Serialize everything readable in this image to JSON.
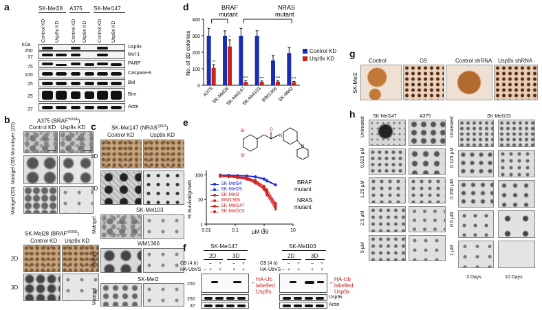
{
  "panel_a": {
    "letter": "a",
    "cell_lines": [
      "SK-Mel28",
      "A375",
      "SK-Mel147"
    ],
    "lanes": [
      "Control KD",
      "Usp9x KD",
      "Control KD",
      "Usp9x KD",
      "Control KD",
      "Usp9x KD"
    ],
    "kda_label": "kDa",
    "markers": [
      "250",
      "37",
      "75",
      "100",
      "25",
      "25",
      "37"
    ],
    "proteins": [
      "Usp9x",
      "Mcl-1",
      "PARP",
      "Caspase-8",
      "Bid",
      "Bim",
      "Actin"
    ]
  },
  "panel_b": {
    "letter": "b",
    "title1": "A375 (BRAF",
    "title1_sup": "V600E",
    "title1_end": ")",
    "col1": "Control KD",
    "col2": "Usp9x KD",
    "rows1": [
      "Monolayer (2D)",
      "Matrigel (3D)",
      "Matrigel (3D)"
    ],
    "title2": "SK-Mel28 (BRAF",
    "title2_sup": "V600E",
    "title2_end": ")",
    "rows2": [
      "2D",
      "3D"
    ]
  },
  "panel_c": {
    "letter": "c",
    "title": "SK-Mel147 (NRAS",
    "title_sup": "Q61R",
    "title_end": ")",
    "col1": "Control KD",
    "col2": "Usp9x KD",
    "rows": [
      "2D",
      "3D"
    ],
    "sub1": "SK-Mel103",
    "sub2": "WM1366",
    "sub3": "SK-Mel2",
    "matrigel": "Matrigel"
  },
  "panel_d": {
    "letter": "d",
    "group1": "BRAF",
    "group1b": "mutant",
    "group2": "NRAS",
    "group2b": "mutant",
    "stars": [
      "**",
      "*",
      "***",
      "***",
      "***",
      "***"
    ],
    "legend_control": "Control KD",
    "legend_usp9x": "Usp9x KD",
    "color_control": "#1a2fb0",
    "color_usp9x": "#c8231c"
  },
  "panel_e": {
    "letter": "e",
    "label_braf": "BRAF",
    "label_braf2": "mutant",
    "label_nras": "NRAS",
    "label_nras2": "mutant",
    "legend": [
      {
        "name": "SK-Mel94",
        "color": "#1a2fd0"
      },
      {
        "name": "SK-Mel29",
        "color": "#1a2fd0"
      },
      {
        "name": "SK-Mel2",
        "color": "#d42020"
      },
      {
        "name": "WM1366",
        "color": "#d42020"
      },
      {
        "name": "SK-Mel147",
        "color": "#d42020"
      },
      {
        "name": "SK-Mel103",
        "color": "#d42020"
      }
    ]
  },
  "panel_f": {
    "letter": "f",
    "cell1": "SK-Mel147",
    "cell2": "SK-Mel103",
    "cond_2d": "2D",
    "cond_3d": "3D",
    "g9": "G9 (4 h)",
    "ubvs": "HA-UbVS",
    "g9_signs": [
      "–",
      "+",
      "–",
      "+"
    ],
    "ubvs_signs": [
      "–",
      "+",
      "+",
      "+",
      "+"
    ],
    "marker250": "250",
    "marker37": "37",
    "arrow_label1": "HA-Ub",
    "arrow_label2": "labelled",
    "arrow_label3": "Usp9x",
    "band_usp9x": "Usp9x",
    "band_actin": "Actin"
  },
  "panel_g": {
    "letter": "g",
    "cols": [
      "Control",
      "G9",
      "Control shRNA",
      "Usp9x shRNA"
    ],
    "row": "SK-Mel2"
  },
  "panel_h": {
    "letter": "h",
    "cols_left": [
      "SK-Mel147",
      "A375"
    ],
    "col_right": "SK-Mel103",
    "rows_left": [
      "Untreated",
      "0.625 µM",
      "1.25 µM",
      "2.5 µM",
      "5 µM"
    ],
    "rows_right": [
      "Untreated",
      "0.125 µM",
      "0.250 µM",
      "0.5 µM",
      "1 µM"
    ],
    "footer1": "3 Days",
    "footer2": "10 Days"
  },
  "chart_data": [
    {
      "type": "bar",
      "title": "",
      "ylabel": "No. of 3D colonies",
      "xlabel": "",
      "categories": [
        "A375",
        "SK-Mel28",
        "SK-Mel147",
        "SK-Mel103",
        "WM1366",
        "SK-Mel2"
      ],
      "series": [
        {
          "name": "Control KD",
          "values": [
            300,
            300,
            300,
            300,
            150,
            195
          ],
          "errors": [
            45,
            30,
            45,
            30,
            30,
            35
          ]
        },
        {
          "name": "Usp9x KD",
          "values": [
            105,
            235,
            20,
            20,
            22,
            18
          ],
          "errors": [
            20,
            40,
            8,
            6,
            6,
            5
          ]
        }
      ],
      "ylim": [
        0,
        400
      ],
      "yticks": [
        0,
        100,
        200,
        300,
        400
      ],
      "legend_position": "right"
    },
    {
      "type": "line",
      "title": "",
      "xlabel": "µM G9",
      "ylabel": "% Survival/growth",
      "xscale": "log",
      "yscale": "log",
      "xlim": [
        0.01,
        10
      ],
      "ylim": [
        1,
        150
      ],
      "xticks": [
        "0.01",
        "0.1",
        "1",
        "10"
      ],
      "yticks": [
        "1",
        "10",
        "100"
      ],
      "x": [
        0.03,
        0.06,
        0.12,
        0.25,
        0.5,
        1,
        1.25,
        2.5
      ],
      "series": [
        {
          "name": "SK-Mel94",
          "values": [
            100,
            98,
            95,
            92,
            85,
            70,
            60,
            40
          ]
        },
        {
          "name": "SK-Mel29",
          "values": [
            98,
            95,
            92,
            88,
            80,
            65,
            55,
            38
          ]
        },
        {
          "name": "SK-Mel2",
          "values": [
            95,
            90,
            85,
            78,
            60,
            35,
            25,
            7
          ]
        },
        {
          "name": "WM1366",
          "values": [
            92,
            88,
            82,
            74,
            55,
            30,
            20,
            6
          ]
        },
        {
          "name": "SK-Mel147",
          "values": [
            88,
            85,
            78,
            70,
            50,
            28,
            18,
            5
          ]
        },
        {
          "name": "SK-Mel103",
          "values": [
            85,
            82,
            75,
            65,
            45,
            25,
            15,
            4
          ]
        }
      ]
    }
  ]
}
